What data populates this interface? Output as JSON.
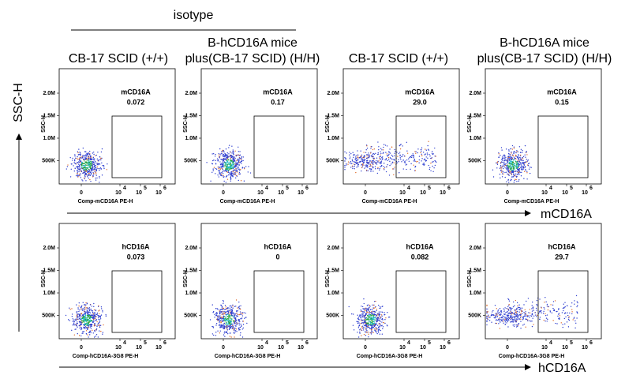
{
  "header": {
    "group_label": "isotype",
    "columns": [
      {
        "lines": [
          "CB-17 SCID (+/+)"
        ]
      },
      {
        "lines": [
          "B-hCD16A mice",
          "plus(CB-17 SCID)  (H/H)"
        ]
      },
      {
        "lines": [
          "CB-17 SCID (+/+)"
        ]
      },
      {
        "lines": [
          "B-hCD16A mice",
          "plus(CB-17 SCID)  (H/H)"
        ]
      }
    ]
  },
  "y_axis_label": "SSC-H",
  "y_ticks": [
    "2.0M",
    "1.5M",
    "1.0M",
    "500K"
  ],
  "x_ticks": [
    {
      "label": "0"
    },
    {
      "base": "10",
      "exp": "4"
    },
    {
      "base": "10",
      "exp": "5"
    },
    {
      "base": "10",
      "exp": "6"
    }
  ],
  "side_label": "SSC-H",
  "rows": [
    {
      "marker": "mCD16A",
      "x_axis_label": "Comp-mCD16A PE-H",
      "panels": [
        {
          "gate": "mCD16A",
          "value": "0.072"
        },
        {
          "gate": "mCD16A",
          "value": "0.17"
        },
        {
          "gate": "mCD16A",
          "value": "29.0"
        },
        {
          "gate": "mCD16A",
          "value": "0.15"
        }
      ]
    },
    {
      "marker": "hCD16A",
      "x_axis_label": "Comp-hCD16A-3G8 PE-H",
      "panels": [
        {
          "gate": "hCD16A",
          "value": "0.073"
        },
        {
          "gate": "hCD16A",
          "value": "0"
        },
        {
          "gate": "hCD16A",
          "value": "0.082"
        },
        {
          "gate": "hCD16A",
          "value": "29.7"
        }
      ]
    }
  ]
}
